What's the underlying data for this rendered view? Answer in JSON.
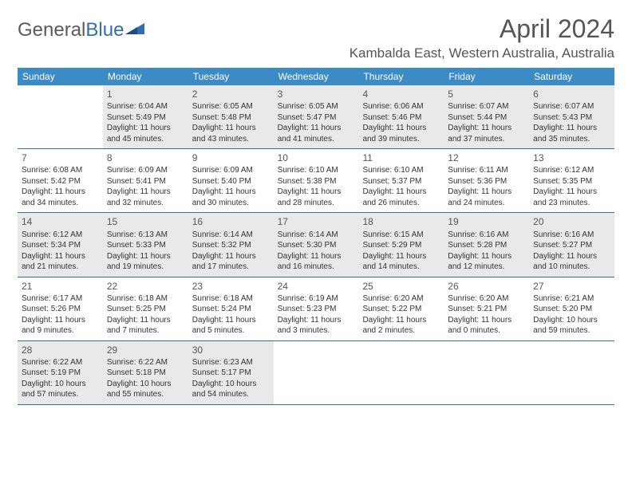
{
  "logo": {
    "text1": "General",
    "text2": "Blue"
  },
  "header": {
    "title": "April 2024",
    "location": "Kambalda East, Western Australia, Australia"
  },
  "weekdays": [
    "Sunday",
    "Monday",
    "Tuesday",
    "Wednesday",
    "Thursday",
    "Friday",
    "Saturday"
  ],
  "colors": {
    "header_bg": "#3b8bc6",
    "row_border": "#3b6a95",
    "shade_bg": "#e9e9e9",
    "title_color": "#555555"
  },
  "weeks": [
    [
      {
        "num": "",
        "shaded": false,
        "sunrise": "",
        "sunset": "",
        "daylight": ""
      },
      {
        "num": "1",
        "shaded": true,
        "sunrise": "Sunrise: 6:04 AM",
        "sunset": "Sunset: 5:49 PM",
        "daylight": "Daylight: 11 hours and 45 minutes."
      },
      {
        "num": "2",
        "shaded": true,
        "sunrise": "Sunrise: 6:05 AM",
        "sunset": "Sunset: 5:48 PM",
        "daylight": "Daylight: 11 hours and 43 minutes."
      },
      {
        "num": "3",
        "shaded": true,
        "sunrise": "Sunrise: 6:05 AM",
        "sunset": "Sunset: 5:47 PM",
        "daylight": "Daylight: 11 hours and 41 minutes."
      },
      {
        "num": "4",
        "shaded": true,
        "sunrise": "Sunrise: 6:06 AM",
        "sunset": "Sunset: 5:46 PM",
        "daylight": "Daylight: 11 hours and 39 minutes."
      },
      {
        "num": "5",
        "shaded": true,
        "sunrise": "Sunrise: 6:07 AM",
        "sunset": "Sunset: 5:44 PM",
        "daylight": "Daylight: 11 hours and 37 minutes."
      },
      {
        "num": "6",
        "shaded": true,
        "sunrise": "Sunrise: 6:07 AM",
        "sunset": "Sunset: 5:43 PM",
        "daylight": "Daylight: 11 hours and 35 minutes."
      }
    ],
    [
      {
        "num": "7",
        "shaded": false,
        "sunrise": "Sunrise: 6:08 AM",
        "sunset": "Sunset: 5:42 PM",
        "daylight": "Daylight: 11 hours and 34 minutes."
      },
      {
        "num": "8",
        "shaded": false,
        "sunrise": "Sunrise: 6:09 AM",
        "sunset": "Sunset: 5:41 PM",
        "daylight": "Daylight: 11 hours and 32 minutes."
      },
      {
        "num": "9",
        "shaded": false,
        "sunrise": "Sunrise: 6:09 AM",
        "sunset": "Sunset: 5:40 PM",
        "daylight": "Daylight: 11 hours and 30 minutes."
      },
      {
        "num": "10",
        "shaded": false,
        "sunrise": "Sunrise: 6:10 AM",
        "sunset": "Sunset: 5:38 PM",
        "daylight": "Daylight: 11 hours and 28 minutes."
      },
      {
        "num": "11",
        "shaded": false,
        "sunrise": "Sunrise: 6:10 AM",
        "sunset": "Sunset: 5:37 PM",
        "daylight": "Daylight: 11 hours and 26 minutes."
      },
      {
        "num": "12",
        "shaded": false,
        "sunrise": "Sunrise: 6:11 AM",
        "sunset": "Sunset: 5:36 PM",
        "daylight": "Daylight: 11 hours and 24 minutes."
      },
      {
        "num": "13",
        "shaded": false,
        "sunrise": "Sunrise: 6:12 AM",
        "sunset": "Sunset: 5:35 PM",
        "daylight": "Daylight: 11 hours and 23 minutes."
      }
    ],
    [
      {
        "num": "14",
        "shaded": true,
        "sunrise": "Sunrise: 6:12 AM",
        "sunset": "Sunset: 5:34 PM",
        "daylight": "Daylight: 11 hours and 21 minutes."
      },
      {
        "num": "15",
        "shaded": true,
        "sunrise": "Sunrise: 6:13 AM",
        "sunset": "Sunset: 5:33 PM",
        "daylight": "Daylight: 11 hours and 19 minutes."
      },
      {
        "num": "16",
        "shaded": true,
        "sunrise": "Sunrise: 6:14 AM",
        "sunset": "Sunset: 5:32 PM",
        "daylight": "Daylight: 11 hours and 17 minutes."
      },
      {
        "num": "17",
        "shaded": true,
        "sunrise": "Sunrise: 6:14 AM",
        "sunset": "Sunset: 5:30 PM",
        "daylight": "Daylight: 11 hours and 16 minutes."
      },
      {
        "num": "18",
        "shaded": true,
        "sunrise": "Sunrise: 6:15 AM",
        "sunset": "Sunset: 5:29 PM",
        "daylight": "Daylight: 11 hours and 14 minutes."
      },
      {
        "num": "19",
        "shaded": true,
        "sunrise": "Sunrise: 6:16 AM",
        "sunset": "Sunset: 5:28 PM",
        "daylight": "Daylight: 11 hours and 12 minutes."
      },
      {
        "num": "20",
        "shaded": true,
        "sunrise": "Sunrise: 6:16 AM",
        "sunset": "Sunset: 5:27 PM",
        "daylight": "Daylight: 11 hours and 10 minutes."
      }
    ],
    [
      {
        "num": "21",
        "shaded": false,
        "sunrise": "Sunrise: 6:17 AM",
        "sunset": "Sunset: 5:26 PM",
        "daylight": "Daylight: 11 hours and 9 minutes."
      },
      {
        "num": "22",
        "shaded": false,
        "sunrise": "Sunrise: 6:18 AM",
        "sunset": "Sunset: 5:25 PM",
        "daylight": "Daylight: 11 hours and 7 minutes."
      },
      {
        "num": "23",
        "shaded": false,
        "sunrise": "Sunrise: 6:18 AM",
        "sunset": "Sunset: 5:24 PM",
        "daylight": "Daylight: 11 hours and 5 minutes."
      },
      {
        "num": "24",
        "shaded": false,
        "sunrise": "Sunrise: 6:19 AM",
        "sunset": "Sunset: 5:23 PM",
        "daylight": "Daylight: 11 hours and 3 minutes."
      },
      {
        "num": "25",
        "shaded": false,
        "sunrise": "Sunrise: 6:20 AM",
        "sunset": "Sunset: 5:22 PM",
        "daylight": "Daylight: 11 hours and 2 minutes."
      },
      {
        "num": "26",
        "shaded": false,
        "sunrise": "Sunrise: 6:20 AM",
        "sunset": "Sunset: 5:21 PM",
        "daylight": "Daylight: 11 hours and 0 minutes."
      },
      {
        "num": "27",
        "shaded": false,
        "sunrise": "Sunrise: 6:21 AM",
        "sunset": "Sunset: 5:20 PM",
        "daylight": "Daylight: 10 hours and 59 minutes."
      }
    ],
    [
      {
        "num": "28",
        "shaded": true,
        "sunrise": "Sunrise: 6:22 AM",
        "sunset": "Sunset: 5:19 PM",
        "daylight": "Daylight: 10 hours and 57 minutes."
      },
      {
        "num": "29",
        "shaded": true,
        "sunrise": "Sunrise: 6:22 AM",
        "sunset": "Sunset: 5:18 PM",
        "daylight": "Daylight: 10 hours and 55 minutes."
      },
      {
        "num": "30",
        "shaded": true,
        "sunrise": "Sunrise: 6:23 AM",
        "sunset": "Sunset: 5:17 PM",
        "daylight": "Daylight: 10 hours and 54 minutes."
      },
      {
        "num": "",
        "shaded": false,
        "sunrise": "",
        "sunset": "",
        "daylight": ""
      },
      {
        "num": "",
        "shaded": false,
        "sunrise": "",
        "sunset": "",
        "daylight": ""
      },
      {
        "num": "",
        "shaded": false,
        "sunrise": "",
        "sunset": "",
        "daylight": ""
      },
      {
        "num": "",
        "shaded": false,
        "sunrise": "",
        "sunset": "",
        "daylight": ""
      }
    ]
  ]
}
